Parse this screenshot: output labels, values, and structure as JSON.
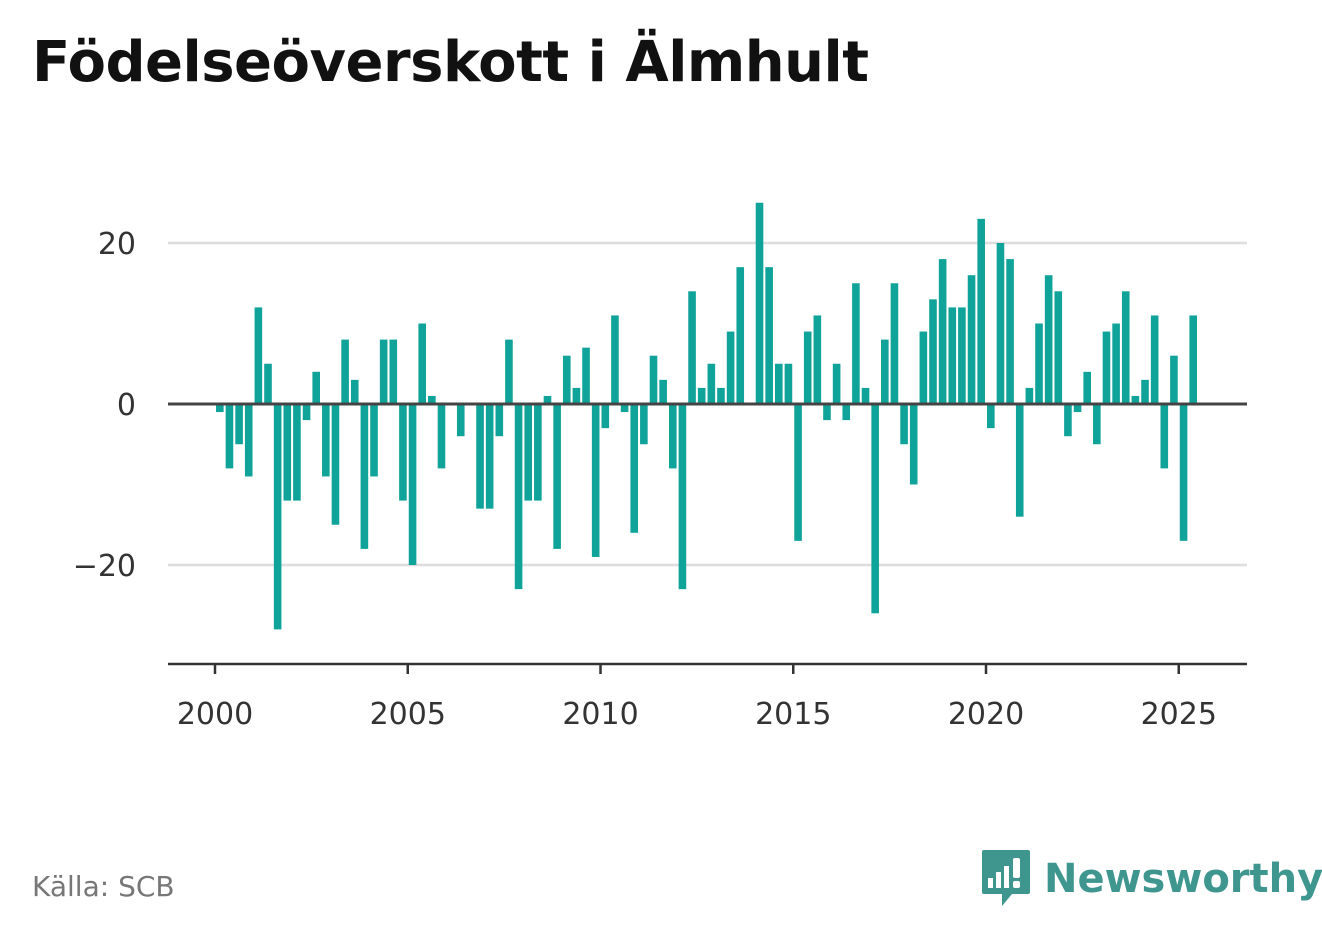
{
  "title": "Födelseöverskott i Älmhult",
  "source": "Källa: SCB",
  "brand": {
    "name": "Newsworthy",
    "icon": "newsworthy-logo-icon"
  },
  "colors": {
    "bar": "#0fa39a",
    "zero_line": "#444444",
    "grid": "#dddddd",
    "axis": "#333333",
    "brand": "#3e968f"
  },
  "chart_data": {
    "type": "bar",
    "title": "Födelseöverskott i Älmhult",
    "xlabel": "",
    "ylabel": "",
    "x_ticks": [
      "2000",
      "2005",
      "2010",
      "2015",
      "2020",
      "2025"
    ],
    "y_ticks": [
      "20",
      "0",
      "−20"
    ],
    "ylim": [
      -32,
      28
    ],
    "grid": true,
    "legend": "none",
    "start": "2000-Q1",
    "frequency": "quarterly",
    "values": [
      -1,
      -8,
      -5,
      -9,
      12,
      5,
      -28,
      -12,
      -12,
      -2,
      4,
      -9,
      -15,
      8,
      3,
      -18,
      -9,
      8,
      8,
      -12,
      -20,
      10,
      1,
      -8,
      0,
      -4,
      0,
      -13,
      -13,
      -4,
      8,
      -23,
      -12,
      -12,
      1,
      -18,
      6,
      2,
      7,
      -19,
      -3,
      11,
      -1,
      -16,
      -5,
      6,
      3,
      -8,
      -23,
      14,
      2,
      5,
      2,
      9,
      17,
      0,
      25,
      17,
      5,
      5,
      -17,
      9,
      11,
      -2,
      5,
      -2,
      15,
      2,
      -26,
      8,
      15,
      -5,
      -10,
      9,
      13,
      18,
      12,
      12,
      16,
      23,
      -3,
      20,
      18,
      -14,
      2,
      10,
      16,
      14,
      -4,
      -1,
      4,
      -5,
      9,
      10,
      14,
      1,
      3,
      11,
      -8,
      6,
      -17,
      11
    ]
  }
}
